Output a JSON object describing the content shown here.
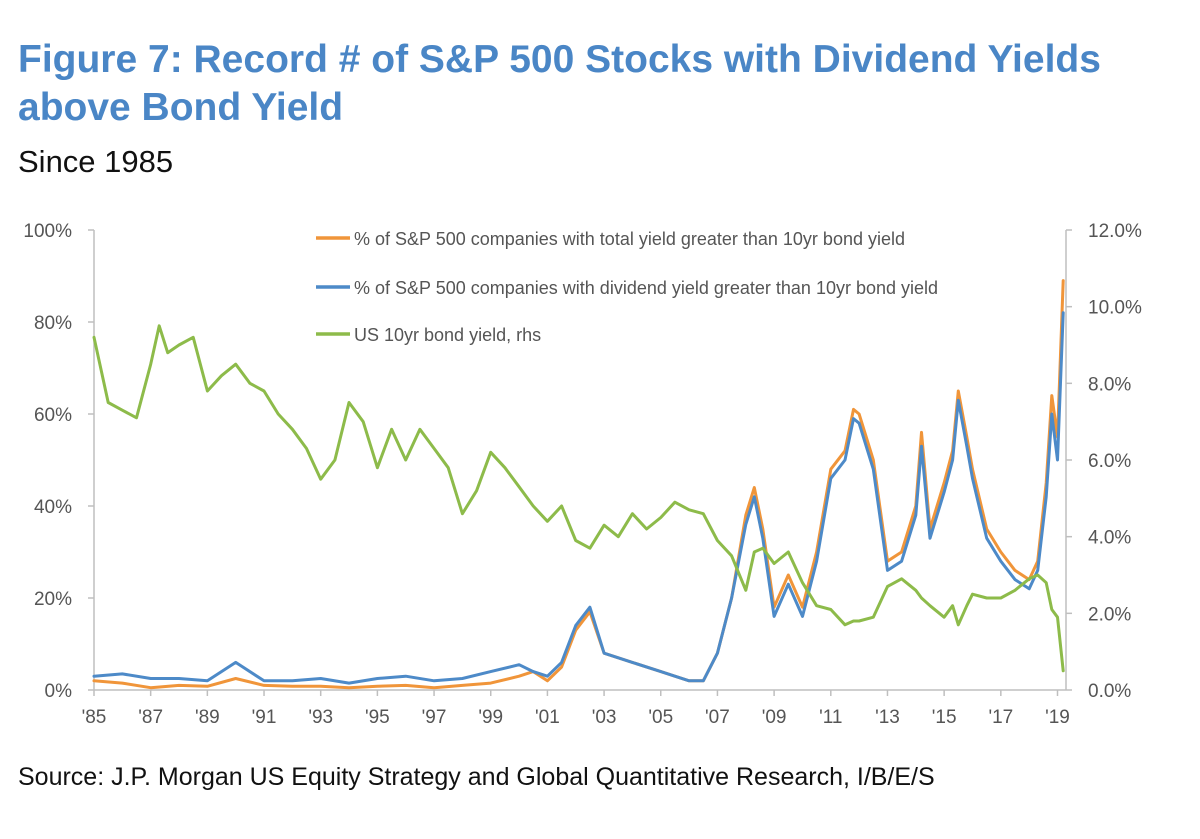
{
  "title": "Figure 7: Record # of S&P 500 Stocks with Dividend Yields above Bond Yield",
  "subtitle": "Since 1985",
  "source": "Source: J.P. Morgan US Equity Strategy and Global Quantitative Research, I/B/E/S",
  "chart_data": {
    "type": "line",
    "x_ticks": [
      "'85",
      "'87",
      "'89",
      "'91",
      "'93",
      "'95",
      "'97",
      "'99",
      "'01",
      "'03",
      "'05",
      "'07",
      "'09",
      "'11",
      "'13",
      "'15",
      "'17",
      "'19"
    ],
    "x_range": [
      1985,
      2019.3
    ],
    "y_left": {
      "ticks": [
        "0%",
        "20%",
        "40%",
        "60%",
        "80%",
        "100%"
      ],
      "range": [
        0,
        100
      ]
    },
    "y_right": {
      "ticks": [
        "0.0%",
        "2.0%",
        "4.0%",
        "6.0%",
        "8.0%",
        "10.0%",
        "12.0%"
      ],
      "range": [
        0,
        12
      ]
    },
    "grid": false,
    "legend_position": "top",
    "series": [
      {
        "name": "% of S&P 500 companies with total yield greater than 10yr bond yield",
        "color": "#f0953a",
        "axis": "left",
        "points": [
          [
            1985,
            2
          ],
          [
            1986,
            1.5
          ],
          [
            1987,
            0.5
          ],
          [
            1988,
            1
          ],
          [
            1989,
            0.8
          ],
          [
            1990,
            2.5
          ],
          [
            1991,
            1
          ],
          [
            1992,
            0.8
          ],
          [
            1993,
            0.8
          ],
          [
            1994,
            0.5
          ],
          [
            1995,
            0.8
          ],
          [
            1996,
            1
          ],
          [
            1997,
            0.5
          ],
          [
            1998,
            1
          ],
          [
            1999,
            1.5
          ],
          [
            2000,
            3
          ],
          [
            2000.5,
            4
          ],
          [
            2001,
            2
          ],
          [
            2001.5,
            5
          ],
          [
            2002,
            13
          ],
          [
            2002.5,
            17
          ],
          [
            2003,
            8
          ],
          [
            2004,
            6
          ],
          [
            2005,
            4
          ],
          [
            2005.5,
            3
          ],
          [
            2006,
            2
          ],
          [
            2006.5,
            2
          ],
          [
            2007,
            8
          ],
          [
            2007.5,
            20
          ],
          [
            2008,
            38
          ],
          [
            2008.3,
            44
          ],
          [
            2008.6,
            35
          ],
          [
            2009,
            18
          ],
          [
            2009.5,
            25
          ],
          [
            2010,
            18
          ],
          [
            2010.5,
            30
          ],
          [
            2011,
            48
          ],
          [
            2011.5,
            52
          ],
          [
            2011.8,
            61
          ],
          [
            2012,
            60
          ],
          [
            2012.5,
            50
          ],
          [
            2013,
            28
          ],
          [
            2013.5,
            30
          ],
          [
            2014,
            40
          ],
          [
            2014.2,
            56
          ],
          [
            2014.5,
            35
          ],
          [
            2015,
            45
          ],
          [
            2015.3,
            52
          ],
          [
            2015.5,
            65
          ],
          [
            2015.8,
            55
          ],
          [
            2016,
            48
          ],
          [
            2016.5,
            35
          ],
          [
            2017,
            30
          ],
          [
            2017.5,
            26
          ],
          [
            2018,
            24
          ],
          [
            2018.3,
            28
          ],
          [
            2018.6,
            45
          ],
          [
            2018.8,
            64
          ],
          [
            2019,
            55
          ],
          [
            2019.2,
            89
          ]
        ]
      },
      {
        "name": "% of S&P 500 companies with dividend yield greater than 10yr bond yield",
        "color": "#4d8ac8",
        "axis": "left",
        "points": [
          [
            1985,
            3
          ],
          [
            1986,
            3.5
          ],
          [
            1987,
            2.5
          ],
          [
            1988,
            2.5
          ],
          [
            1989,
            2
          ],
          [
            1990,
            6
          ],
          [
            1991,
            2
          ],
          [
            1992,
            2
          ],
          [
            1993,
            2.5
          ],
          [
            1994,
            1.5
          ],
          [
            1995,
            2.5
          ],
          [
            1996,
            3
          ],
          [
            1997,
            2
          ],
          [
            1998,
            2.5
          ],
          [
            1999,
            4
          ],
          [
            2000,
            5.5
          ],
          [
            2000.5,
            4
          ],
          [
            2001,
            3
          ],
          [
            2001.5,
            6
          ],
          [
            2002,
            14
          ],
          [
            2002.5,
            18
          ],
          [
            2003,
            8
          ],
          [
            2004,
            6
          ],
          [
            2005,
            4
          ],
          [
            2005.5,
            3
          ],
          [
            2006,
            2
          ],
          [
            2006.5,
            2
          ],
          [
            2007,
            8
          ],
          [
            2007.5,
            20
          ],
          [
            2008,
            36
          ],
          [
            2008.3,
            42
          ],
          [
            2008.6,
            33
          ],
          [
            2009,
            16
          ],
          [
            2009.5,
            23
          ],
          [
            2010,
            16
          ],
          [
            2010.5,
            28
          ],
          [
            2011,
            46
          ],
          [
            2011.5,
            50
          ],
          [
            2011.8,
            59
          ],
          [
            2012,
            58
          ],
          [
            2012.5,
            48
          ],
          [
            2013,
            26
          ],
          [
            2013.5,
            28
          ],
          [
            2014,
            38
          ],
          [
            2014.2,
            53
          ],
          [
            2014.5,
            33
          ],
          [
            2015,
            43
          ],
          [
            2015.3,
            50
          ],
          [
            2015.5,
            63
          ],
          [
            2015.8,
            53
          ],
          [
            2016,
            46
          ],
          [
            2016.5,
            33
          ],
          [
            2017,
            28
          ],
          [
            2017.5,
            24
          ],
          [
            2018,
            22
          ],
          [
            2018.3,
            26
          ],
          [
            2018.6,
            42
          ],
          [
            2018.8,
            60
          ],
          [
            2019,
            50
          ],
          [
            2019.2,
            82
          ]
        ]
      },
      {
        "name": "US 10yr bond yield, rhs",
        "color": "#8dbb4a",
        "axis": "right",
        "points": [
          [
            1985,
            9.2
          ],
          [
            1985.5,
            7.5
          ],
          [
            1986,
            7.3
          ],
          [
            1986.5,
            7.1
          ],
          [
            1987,
            8.5
          ],
          [
            1987.3,
            9.5
          ],
          [
            1987.6,
            8.8
          ],
          [
            1988,
            9
          ],
          [
            1988.5,
            9.2
          ],
          [
            1989,
            7.8
          ],
          [
            1989.5,
            8.2
          ],
          [
            1990,
            8.5
          ],
          [
            1990.5,
            8
          ],
          [
            1991,
            7.8
          ],
          [
            1991.5,
            7.2
          ],
          [
            1992,
            6.8
          ],
          [
            1992.5,
            6.3
          ],
          [
            1993,
            5.5
          ],
          [
            1993.5,
            6
          ],
          [
            1994,
            7.5
          ],
          [
            1994.5,
            7
          ],
          [
            1995,
            5.8
          ],
          [
            1995.5,
            6.8
          ],
          [
            1996,
            6
          ],
          [
            1996.5,
            6.8
          ],
          [
            1997,
            6.3
          ],
          [
            1997.5,
            5.8
          ],
          [
            1998,
            4.6
          ],
          [
            1998.5,
            5.2
          ],
          [
            1999,
            6.2
          ],
          [
            1999.5,
            5.8
          ],
          [
            2000,
            5.3
          ],
          [
            2000.5,
            4.8
          ],
          [
            2001,
            4.4
          ],
          [
            2001.5,
            4.8
          ],
          [
            2002,
            3.9
          ],
          [
            2002.5,
            3.7
          ],
          [
            2003,
            4.3
          ],
          [
            2003.5,
            4
          ],
          [
            2004,
            4.6
          ],
          [
            2004.5,
            4.2
          ],
          [
            2005,
            4.5
          ],
          [
            2005.5,
            4.9
          ],
          [
            2006,
            4.7
          ],
          [
            2006.5,
            4.6
          ],
          [
            2007,
            3.9
          ],
          [
            2007.5,
            3.5
          ],
          [
            2008,
            2.6
          ],
          [
            2008.3,
            3.6
          ],
          [
            2008.6,
            3.7
          ],
          [
            2009,
            3.3
          ],
          [
            2009.5,
            3.6
          ],
          [
            2010,
            2.8
          ],
          [
            2010.5,
            2.2
          ],
          [
            2011,
            2.1
          ],
          [
            2011.5,
            1.7
          ],
          [
            2011.8,
            1.8
          ],
          [
            2012,
            1.8
          ],
          [
            2012.5,
            1.9
          ],
          [
            2013,
            2.7
          ],
          [
            2013.5,
            2.9
          ],
          [
            2014,
            2.6
          ],
          [
            2014.2,
            2.4
          ],
          [
            2014.5,
            2.2
          ],
          [
            2015,
            1.9
          ],
          [
            2015.3,
            2.2
          ],
          [
            2015.5,
            1.7
          ],
          [
            2015.8,
            2.2
          ],
          [
            2016,
            2.5
          ],
          [
            2016.5,
            2.4
          ],
          [
            2017,
            2.4
          ],
          [
            2017.5,
            2.6
          ],
          [
            2018,
            2.9
          ],
          [
            2018.3,
            3
          ],
          [
            2018.6,
            2.8
          ],
          [
            2018.8,
            2.1
          ],
          [
            2019,
            1.9
          ],
          [
            2019.2,
            0.5
          ]
        ]
      }
    ]
  }
}
